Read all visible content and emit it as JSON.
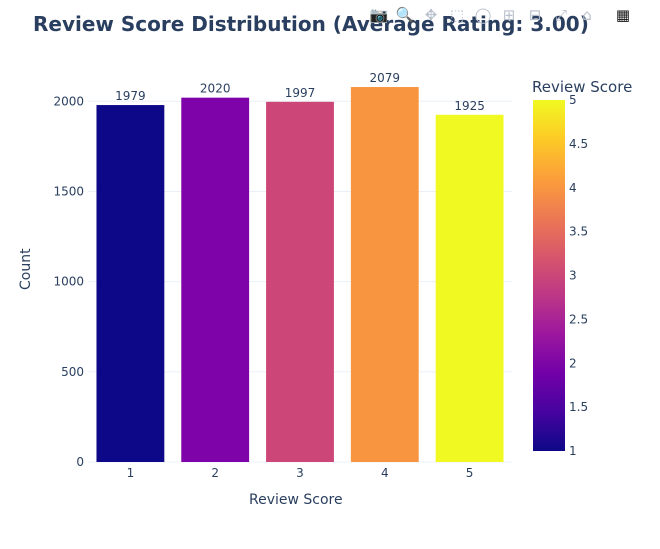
{
  "modebar": {
    "icons": [
      "camera-icon",
      "zoom-icon",
      "pan-icon",
      "box-select-icon",
      "lasso-icon",
      "zoom-in-icon",
      "zoom-out-icon",
      "autoscale-icon",
      "home-icon",
      "plotly-logo-icon"
    ]
  },
  "chart_data": {
    "type": "bar",
    "title": "Review Score Distribution (Average Rating: 3.00)",
    "xlabel": "Review Score",
    "ylabel": "Count",
    "categories": [
      "1",
      "2",
      "3",
      "4",
      "5"
    ],
    "values": [
      1979,
      2020,
      1997,
      2079,
      1925
    ],
    "data_labels": [
      "1979",
      "2020",
      "1997",
      "2079",
      "1925"
    ],
    "bar_colors": [
      "#0d0887",
      "#7e03a8",
      "#cc4778",
      "#f89540",
      "#f0f921"
    ],
    "ylim": [
      0,
      2190
    ],
    "yticks": [
      0,
      500,
      1000,
      1500,
      2000
    ],
    "grid": true,
    "colorbar": {
      "title": "Review Score",
      "range": [
        1,
        5
      ],
      "ticks": [
        "1",
        "1.5",
        "2",
        "2.5",
        "3",
        "3.5",
        "4",
        "4.5",
        "5"
      ],
      "colorscale": [
        "#0d0887",
        "#46039f",
        "#7201a8",
        "#9c179e",
        "#bd3786",
        "#d8576b",
        "#ed7953",
        "#fb9f3a",
        "#fdca26",
        "#f0f921"
      ]
    }
  }
}
